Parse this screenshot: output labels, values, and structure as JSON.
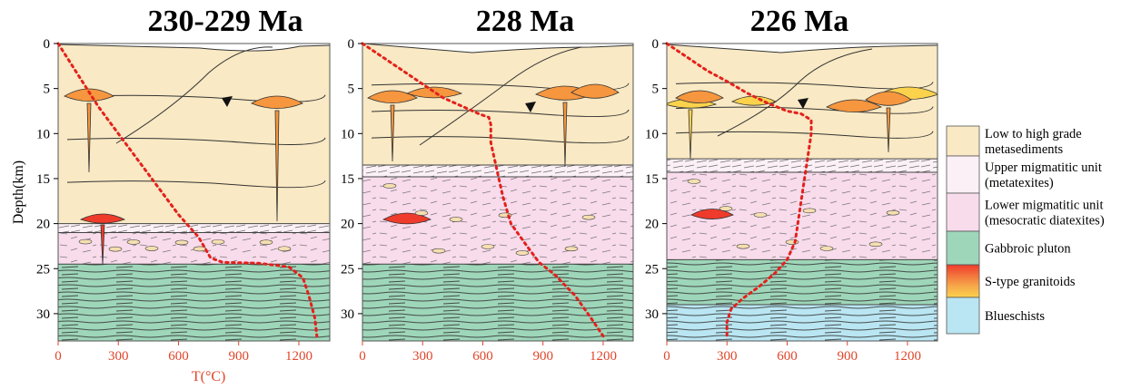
{
  "panels": [
    {
      "title": "230-229 Ma"
    },
    {
      "title": "228 Ma"
    },
    {
      "title": "226 Ma"
    }
  ],
  "axes": {
    "depth_label": "Depth(km)",
    "depth_ticks": [
      0,
      5,
      10,
      15,
      20,
      25,
      30
    ],
    "temp_label": "T(°C)",
    "temp_ticks": [
      0,
      300,
      600,
      900,
      1200
    ]
  },
  "legend": [
    {
      "label_lines": [
        "Low to high grade",
        "metasediments"
      ],
      "color": "#f9e9c4"
    },
    {
      "label_lines": [
        "Upper migmatitic unit",
        "(metatexites)"
      ],
      "color": "#fbf0f6"
    },
    {
      "label_lines": [
        "Lower migmatitic unit",
        "(mesocratic diatexites)"
      ],
      "color": "#f8dcec"
    },
    {
      "label_lines": [
        "Gabbroic pluton"
      ],
      "color": "#9ed6b9"
    },
    {
      "label_lines": [
        "S-type granitoids"
      ],
      "color": "#f6a94a",
      "gradient": [
        "#ee3b2b",
        "#f3743c",
        "#f6a94a",
        "#fbd24c"
      ]
    },
    {
      "label_lines": [
        "Blueschists"
      ],
      "color": "#b9e6f2"
    }
  ],
  "colors": {
    "metasediments": "#f9e9c4",
    "upper_migmatite": "#fbf0f6",
    "lower_migmatite": "#f8dcec",
    "gabbro": "#9ed6b9",
    "blueschist": "#b9e6f2",
    "granitoid_red": "#ee3b2b",
    "granitoid_orange": "#f6963e",
    "granitoid_yellow": "#fbd24c",
    "geotherm": "#e3211c",
    "temp_axis": "#e0452a"
  },
  "chart_data": [
    {
      "type": "line",
      "title": "230-229 Ma",
      "xlabel": "T(°C)",
      "ylabel": "Depth(km)",
      "xlim": [
        0,
        1350
      ],
      "ylim": [
        0,
        33
      ],
      "y_inverted": true,
      "layers_km": {
        "metasediments": [
          0,
          20
        ],
        "upper_migmatite": [
          20,
          21
        ],
        "lower_migmatite": [
          21,
          24.5
        ],
        "gabbro": [
          24.5,
          33
        ]
      },
      "series": [
        {
          "x": [
            0,
            100,
            200,
            300,
            400,
            500,
            600,
            700,
            760,
            820,
            1000,
            1150,
            1220,
            1250,
            1280,
            1290
          ],
          "y": [
            0,
            3.5,
            7,
            10,
            13,
            16,
            19,
            21.5,
            23.8,
            24.3,
            24.4,
            24.8,
            26,
            28,
            30.5,
            32.5
          ]
        }
      ]
    },
    {
      "type": "line",
      "title": "228 Ma",
      "xlabel": "",
      "ylabel": "",
      "xlim": [
        0,
        1350
      ],
      "ylim": [
        0,
        33
      ],
      "y_inverted": true,
      "layers_km": {
        "metasediments": [
          0,
          13.5
        ],
        "upper_migmatite": [
          13.5,
          14.8
        ],
        "lower_migmatite": [
          14.8,
          24.5
        ],
        "gabbro": [
          24.5,
          33
        ]
      },
      "series": [
        {
          "x": [
            0,
            100,
            200,
            300,
            400,
            500,
            580,
            630,
            640,
            640,
            660,
            680,
            700,
            740,
            820,
            880,
            960,
            1060,
            1140,
            1200
          ],
          "y": [
            0,
            1.5,
            3,
            4.5,
            6,
            7,
            7.8,
            8.2,
            9,
            11,
            13,
            15,
            17,
            20,
            22.5,
            24.3,
            25.7,
            28,
            30.5,
            32.5
          ]
        }
      ]
    },
    {
      "type": "line",
      "title": "226 Ma",
      "xlabel": "",
      "ylabel": "",
      "xlim": [
        0,
        1350
      ],
      "ylim": [
        0,
        33
      ],
      "y_inverted": true,
      "layers_km": {
        "metasediments": [
          0,
          12.8
        ],
        "upper_migmatite": [
          12.8,
          14.3
        ],
        "lower_migmatite": [
          14.3,
          24
        ],
        "gabbro": [
          24,
          29
        ],
        "blueschist": [
          29,
          33
        ]
      },
      "series": [
        {
          "x": [
            0,
            100,
            200,
            300,
            400,
            500,
            600,
            670,
            720,
            720,
            700,
            680,
            660,
            640,
            600,
            540,
            460,
            380,
            320,
            300,
            300
          ],
          "y": [
            0,
            1.5,
            3,
            4.2,
            5.5,
            6.6,
            7.5,
            7.8,
            8.5,
            10,
            13,
            16,
            19,
            22,
            24,
            25.5,
            27,
            28.3,
            29.5,
            31,
            32.5
          ]
        }
      ]
    }
  ]
}
